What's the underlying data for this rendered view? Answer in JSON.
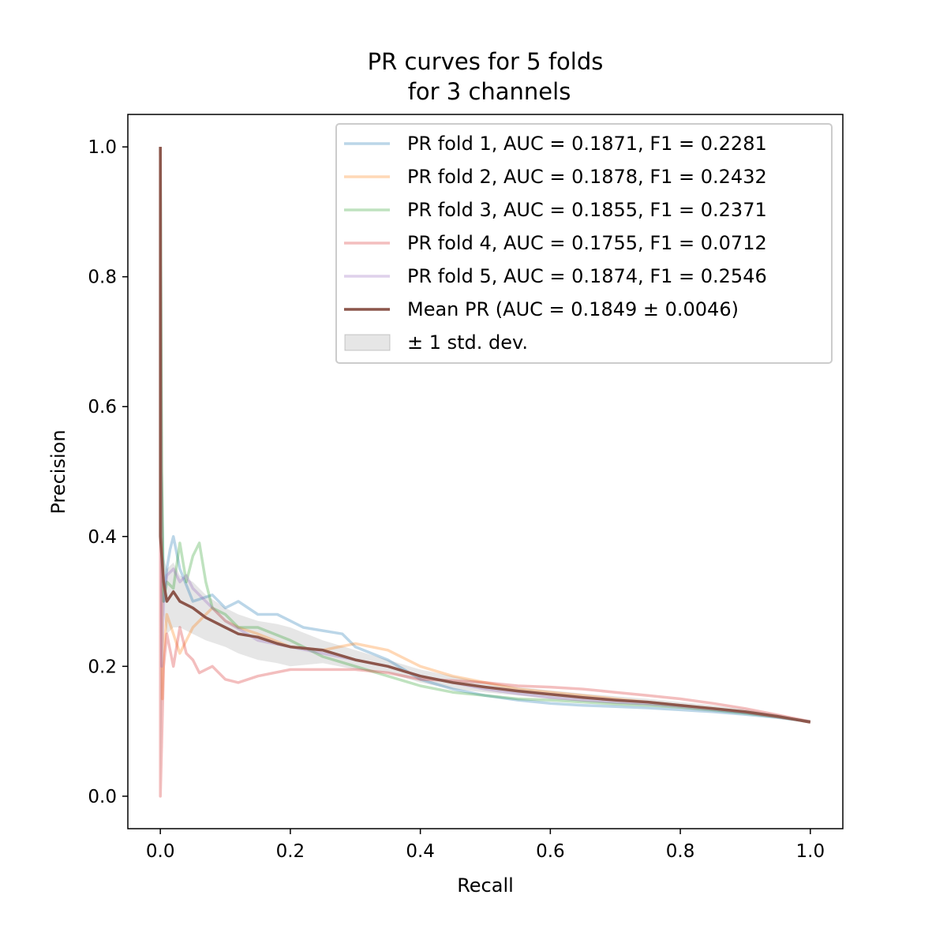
{
  "chart_data": {
    "type": "line",
    "title": [
      "PR curves for 5 folds",
      "for 3 channels"
    ],
    "xlabel": "Recall",
    "ylabel": "Precision",
    "xlim": [
      -0.05,
      1.05
    ],
    "ylim": [
      -0.05,
      1.05
    ],
    "xticks": [
      0.0,
      0.2,
      0.4,
      0.6,
      0.8,
      1.0
    ],
    "yticks": [
      0.0,
      0.2,
      0.4,
      0.6,
      0.8,
      1.0
    ],
    "xtick_labels": [
      "0.0",
      "0.2",
      "0.4",
      "0.6",
      "0.8",
      "1.0"
    ],
    "ytick_labels": [
      "0.0",
      "0.2",
      "0.4",
      "0.6",
      "0.8",
      "1.0"
    ],
    "grid": false,
    "legend_position": "top-right",
    "series": [
      {
        "name": "PR fold 1, AUC = 0.1871, F1 = 0.2281",
        "color": "#1f77b4",
        "alpha": 0.3,
        "points": [
          [
            0.0,
            1.0
          ],
          [
            0.002,
            0.5
          ],
          [
            0.005,
            0.3
          ],
          [
            0.01,
            0.35
          ],
          [
            0.015,
            0.38
          ],
          [
            0.02,
            0.4
          ],
          [
            0.03,
            0.35
          ],
          [
            0.05,
            0.3
          ],
          [
            0.08,
            0.31
          ],
          [
            0.1,
            0.29
          ],
          [
            0.12,
            0.3
          ],
          [
            0.15,
            0.28
          ],
          [
            0.18,
            0.28
          ],
          [
            0.2,
            0.27
          ],
          [
            0.22,
            0.26
          ],
          [
            0.25,
            0.255
          ],
          [
            0.28,
            0.25
          ],
          [
            0.3,
            0.23
          ],
          [
            0.35,
            0.21
          ],
          [
            0.4,
            0.18
          ],
          [
            0.45,
            0.165
          ],
          [
            0.5,
            0.155
          ],
          [
            0.55,
            0.148
          ],
          [
            0.6,
            0.143
          ],
          [
            0.65,
            0.14
          ],
          [
            0.7,
            0.138
          ],
          [
            0.75,
            0.136
          ],
          [
            0.8,
            0.133
          ],
          [
            0.85,
            0.13
          ],
          [
            0.9,
            0.126
          ],
          [
            0.95,
            0.121
          ],
          [
            1.0,
            0.115
          ]
        ]
      },
      {
        "name": "PR fold 2, AUC = 0.1878, F1 = 0.2432",
        "color": "#ff7f0e",
        "alpha": 0.3,
        "points": [
          [
            0.0,
            1.0
          ],
          [
            0.003,
            0.15
          ],
          [
            0.005,
            0.22
          ],
          [
            0.01,
            0.28
          ],
          [
            0.02,
            0.25
          ],
          [
            0.03,
            0.22
          ],
          [
            0.05,
            0.26
          ],
          [
            0.08,
            0.29
          ],
          [
            0.1,
            0.27
          ],
          [
            0.12,
            0.26
          ],
          [
            0.15,
            0.25
          ],
          [
            0.2,
            0.23
          ],
          [
            0.25,
            0.225
          ],
          [
            0.3,
            0.235
          ],
          [
            0.35,
            0.225
          ],
          [
            0.4,
            0.2
          ],
          [
            0.45,
            0.185
          ],
          [
            0.5,
            0.175
          ],
          [
            0.55,
            0.165
          ],
          [
            0.6,
            0.16
          ],
          [
            0.65,
            0.155
          ],
          [
            0.7,
            0.15
          ],
          [
            0.75,
            0.145
          ],
          [
            0.8,
            0.14
          ],
          [
            0.85,
            0.135
          ],
          [
            0.9,
            0.13
          ],
          [
            0.95,
            0.122
          ],
          [
            1.0,
            0.115
          ]
        ]
      },
      {
        "name": "PR fold 3, AUC = 0.1855, F1 = 0.2371",
        "color": "#2ca02c",
        "alpha": 0.3,
        "points": [
          [
            0.0,
            1.0
          ],
          [
            0.002,
            0.5
          ],
          [
            0.005,
            0.3
          ],
          [
            0.01,
            0.33
          ],
          [
            0.02,
            0.32
          ],
          [
            0.03,
            0.39
          ],
          [
            0.04,
            0.33
          ],
          [
            0.05,
            0.37
          ],
          [
            0.06,
            0.39
          ],
          [
            0.07,
            0.33
          ],
          [
            0.08,
            0.29
          ],
          [
            0.1,
            0.28
          ],
          [
            0.12,
            0.26
          ],
          [
            0.15,
            0.26
          ],
          [
            0.2,
            0.24
          ],
          [
            0.25,
            0.215
          ],
          [
            0.3,
            0.2
          ],
          [
            0.35,
            0.185
          ],
          [
            0.4,
            0.17
          ],
          [
            0.45,
            0.16
          ],
          [
            0.5,
            0.155
          ],
          [
            0.55,
            0.15
          ],
          [
            0.6,
            0.148
          ],
          [
            0.65,
            0.145
          ],
          [
            0.7,
            0.142
          ],
          [
            0.75,
            0.14
          ],
          [
            0.8,
            0.137
          ],
          [
            0.85,
            0.133
          ],
          [
            0.9,
            0.128
          ],
          [
            0.95,
            0.122
          ],
          [
            1.0,
            0.115
          ]
        ]
      },
      {
        "name": "PR fold 4, AUC = 0.1755, F1 = 0.0712",
        "color": "#d62728",
        "alpha": 0.3,
        "points": [
          [
            0.0,
            1.0
          ],
          [
            0.0,
            0.0
          ],
          [
            0.003,
            0.12
          ],
          [
            0.005,
            0.2
          ],
          [
            0.01,
            0.25
          ],
          [
            0.02,
            0.2
          ],
          [
            0.03,
            0.26
          ],
          [
            0.04,
            0.22
          ],
          [
            0.05,
            0.21
          ],
          [
            0.06,
            0.19
          ],
          [
            0.08,
            0.2
          ],
          [
            0.1,
            0.18
          ],
          [
            0.12,
            0.175
          ],
          [
            0.15,
            0.185
          ],
          [
            0.2,
            0.195
          ],
          [
            0.25,
            0.195
          ],
          [
            0.3,
            0.195
          ],
          [
            0.35,
            0.19
          ],
          [
            0.4,
            0.18
          ],
          [
            0.45,
            0.178
          ],
          [
            0.5,
            0.175
          ],
          [
            0.55,
            0.17
          ],
          [
            0.6,
            0.168
          ],
          [
            0.65,
            0.165
          ],
          [
            0.7,
            0.16
          ],
          [
            0.75,
            0.155
          ],
          [
            0.8,
            0.15
          ],
          [
            0.85,
            0.143
          ],
          [
            0.9,
            0.135
          ],
          [
            0.95,
            0.125
          ],
          [
            1.0,
            0.115
          ]
        ]
      },
      {
        "name": "PR fold 5, AUC = 0.1874, F1 = 0.2546",
        "color": "#9467bd",
        "alpha": 0.3,
        "points": [
          [
            0.0,
            1.0
          ],
          [
            0.002,
            0.2
          ],
          [
            0.005,
            0.3
          ],
          [
            0.01,
            0.34
          ],
          [
            0.02,
            0.35
          ],
          [
            0.03,
            0.33
          ],
          [
            0.04,
            0.34
          ],
          [
            0.05,
            0.32
          ],
          [
            0.07,
            0.3
          ],
          [
            0.1,
            0.27
          ],
          [
            0.15,
            0.24
          ],
          [
            0.2,
            0.23
          ],
          [
            0.25,
            0.22
          ],
          [
            0.3,
            0.21
          ],
          [
            0.35,
            0.2
          ],
          [
            0.4,
            0.185
          ],
          [
            0.45,
            0.175
          ],
          [
            0.5,
            0.165
          ],
          [
            0.55,
            0.158
          ],
          [
            0.6,
            0.152
          ],
          [
            0.65,
            0.148
          ],
          [
            0.7,
            0.145
          ],
          [
            0.75,
            0.142
          ],
          [
            0.8,
            0.138
          ],
          [
            0.85,
            0.134
          ],
          [
            0.9,
            0.129
          ],
          [
            0.95,
            0.122
          ],
          [
            1.0,
            0.115
          ]
        ]
      }
    ],
    "mean": {
      "name": "Mean PR (AUC = 0.1849 ± 0.0046)",
      "color": "#8c564b",
      "points": [
        [
          0.0,
          1.0
        ],
        [
          0.0,
          0.4
        ],
        [
          0.005,
          0.33
        ],
        [
          0.01,
          0.3
        ],
        [
          0.02,
          0.315
        ],
        [
          0.03,
          0.3
        ],
        [
          0.05,
          0.29
        ],
        [
          0.07,
          0.275
        ],
        [
          0.1,
          0.26
        ],
        [
          0.12,
          0.25
        ],
        [
          0.15,
          0.245
        ],
        [
          0.18,
          0.235
        ],
        [
          0.2,
          0.23
        ],
        [
          0.25,
          0.225
        ],
        [
          0.3,
          0.21
        ],
        [
          0.35,
          0.2
        ],
        [
          0.4,
          0.185
        ],
        [
          0.45,
          0.175
        ],
        [
          0.5,
          0.168
        ],
        [
          0.55,
          0.162
        ],
        [
          0.6,
          0.157
        ],
        [
          0.65,
          0.152
        ],
        [
          0.7,
          0.148
        ],
        [
          0.75,
          0.145
        ],
        [
          0.8,
          0.14
        ],
        [
          0.85,
          0.135
        ],
        [
          0.9,
          0.13
        ],
        [
          0.95,
          0.123
        ],
        [
          1.0,
          0.114
        ]
      ]
    },
    "std_band": {
      "name": "± 1 std. dev.",
      "color": "#808080",
      "alpha": 0.2,
      "x": [
        0.0,
        0.005,
        0.01,
        0.02,
        0.03,
        0.05,
        0.07,
        0.1,
        0.12,
        0.15,
        0.18,
        0.2,
        0.25,
        0.3,
        0.35,
        0.4,
        0.45,
        0.5,
        0.55,
        0.6,
        0.65,
        0.7,
        0.75,
        0.8,
        0.85,
        0.9,
        0.95,
        1.0
      ],
      "upper": [
        1.0,
        0.37,
        0.35,
        0.36,
        0.34,
        0.33,
        0.31,
        0.29,
        0.28,
        0.27,
        0.265,
        0.26,
        0.24,
        0.225,
        0.21,
        0.195,
        0.185,
        0.175,
        0.168,
        0.163,
        0.158,
        0.154,
        0.15,
        0.145,
        0.14,
        0.134,
        0.126,
        0.116
      ],
      "lower": [
        0.0,
        0.28,
        0.25,
        0.26,
        0.26,
        0.25,
        0.24,
        0.23,
        0.22,
        0.21,
        0.205,
        0.2,
        0.205,
        0.195,
        0.19,
        0.175,
        0.165,
        0.16,
        0.155,
        0.15,
        0.146,
        0.142,
        0.14,
        0.135,
        0.13,
        0.126,
        0.12,
        0.112
      ]
    }
  }
}
